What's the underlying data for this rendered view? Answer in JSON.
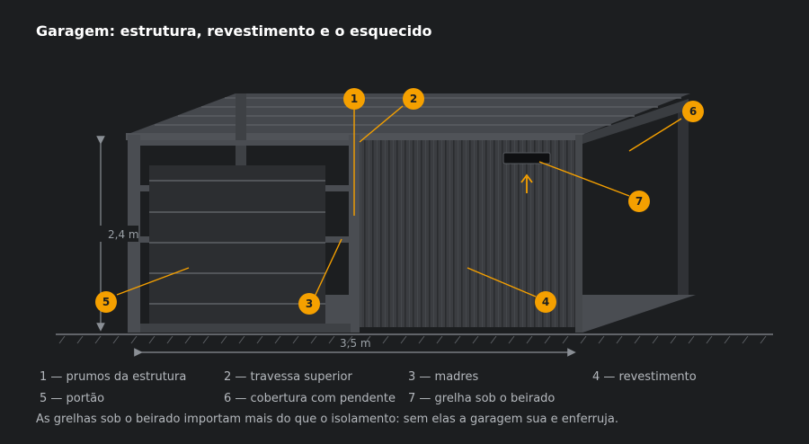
{
  "title": "Garagem: estrutura, revestimento e o esquecido",
  "dimensions": {
    "height": "2,4 m",
    "width": "3,5 m"
  },
  "badges": [
    "1",
    "2",
    "3",
    "4",
    "5",
    "6",
    "7"
  ],
  "legend": [
    "1 — prumos da estrutura",
    "2 — travessa superior",
    "3 — madres",
    "4 — revestimento",
    "5 — portão",
    "6 — cobertura com pendente",
    "7 — grelha sob o beirado"
  ],
  "footnote": "As grelhas sob o beirado importam mais do que o isolamento: sem elas a garagem sua e enferruja.",
  "colors": {
    "accent": "#f5a000",
    "background": "#1c1e20",
    "structure": "#4a4d52",
    "cladding": "#3a3c40"
  }
}
